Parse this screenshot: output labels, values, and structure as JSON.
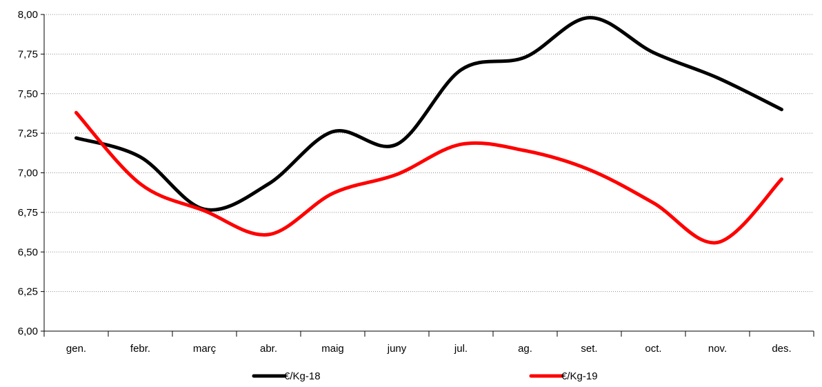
{
  "chart_data": {
    "type": "line",
    "smooth": true,
    "categories": [
      "gen.",
      "febr.",
      "març",
      "abr.",
      "maig",
      "juny",
      "jul.",
      "ag.",
      "set.",
      "oct.",
      "nov.",
      "des."
    ],
    "series": [
      {
        "name": "€/Kg-18",
        "color": "#000000",
        "values": [
          7.22,
          7.1,
          6.77,
          6.93,
          7.26,
          7.18,
          7.65,
          7.73,
          7.98,
          7.76,
          7.6,
          7.4
        ]
      },
      {
        "name": "€/Kg-19",
        "color": "#ff0000",
        "values": [
          7.38,
          6.93,
          6.76,
          6.61,
          6.87,
          6.99,
          7.18,
          7.14,
          7.02,
          6.81,
          6.56,
          6.96
        ]
      }
    ],
    "y_ticks": [
      "6,00",
      "6,25",
      "6,50",
      "6,75",
      "7,00",
      "7,25",
      "7,50",
      "7,75",
      "8,00"
    ],
    "ylim": [
      6.0,
      8.0
    ],
    "grid": true,
    "grid_style": "dotted",
    "legend_position": "bottom"
  }
}
